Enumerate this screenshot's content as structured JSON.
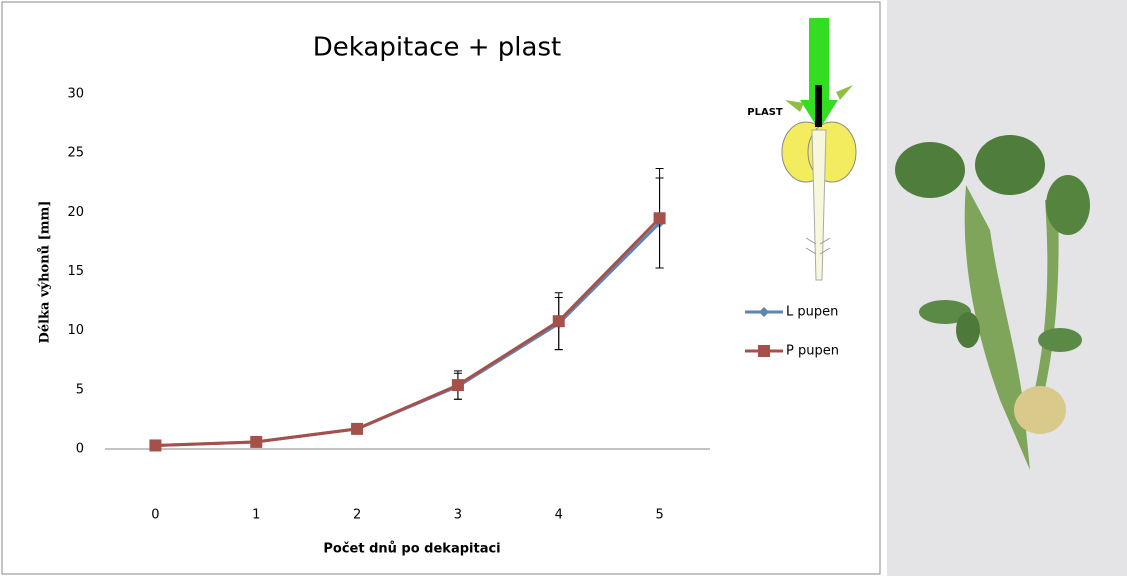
{
  "chart_data": {
    "type": "line",
    "title": "Dekapitace + plast",
    "x_label": "Počet dnů po dekapitaci",
    "y_label": "Délka výhonů [mm]",
    "categories": [
      "0",
      "1",
      "2",
      "3",
      "4",
      "5"
    ],
    "series": [
      {
        "name": "L pupen",
        "color": "#5b86b0",
        "marker": "diamond",
        "values": [
          0.3,
          0.6,
          1.7,
          5.3,
          10.6,
          19.1
        ],
        "errors": [
          0.1,
          0.1,
          0.1,
          1.1,
          2.2,
          3.8
        ]
      },
      {
        "name": "P pupen",
        "color": "#a5504b",
        "marker": "square",
        "values": [
          0.3,
          0.6,
          1.7,
          5.4,
          10.8,
          19.5
        ],
        "errors": [
          0.1,
          0.1,
          0.1,
          1.2,
          2.4,
          4.2
        ]
      }
    ],
    "ylim": [
      0,
      30
    ],
    "yticks": [
      0,
      5,
      10,
      15,
      20,
      25,
      30
    ],
    "grid": false,
    "legend": "right",
    "diagram_label": "PLAST"
  }
}
